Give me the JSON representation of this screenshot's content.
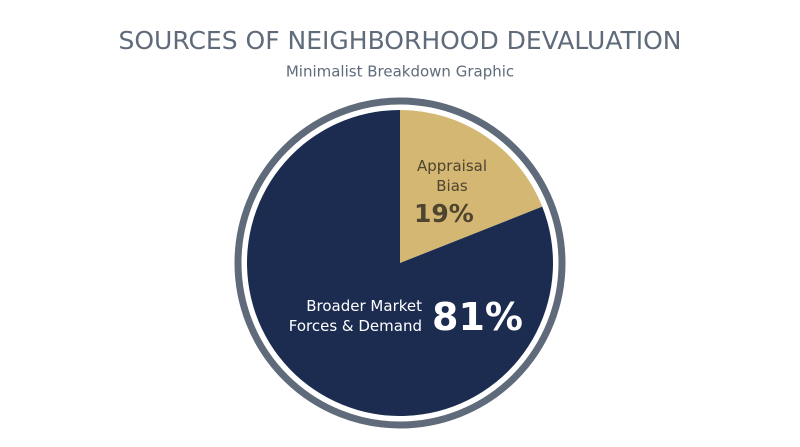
{
  "chart_data": {
    "type": "pie",
    "title": "SOURCES OF NEIGHBORHOOD DEVALUATION",
    "subtitle": "Minimalist Breakdown Graphic",
    "categories": [
      "Appraisal Bias",
      "Broader Market Forces & Demand"
    ],
    "values": [
      19,
      81
    ],
    "value_labels": [
      "19%",
      "81%"
    ],
    "colors": [
      "#d4b773",
      "#1c2c50"
    ]
  }
}
